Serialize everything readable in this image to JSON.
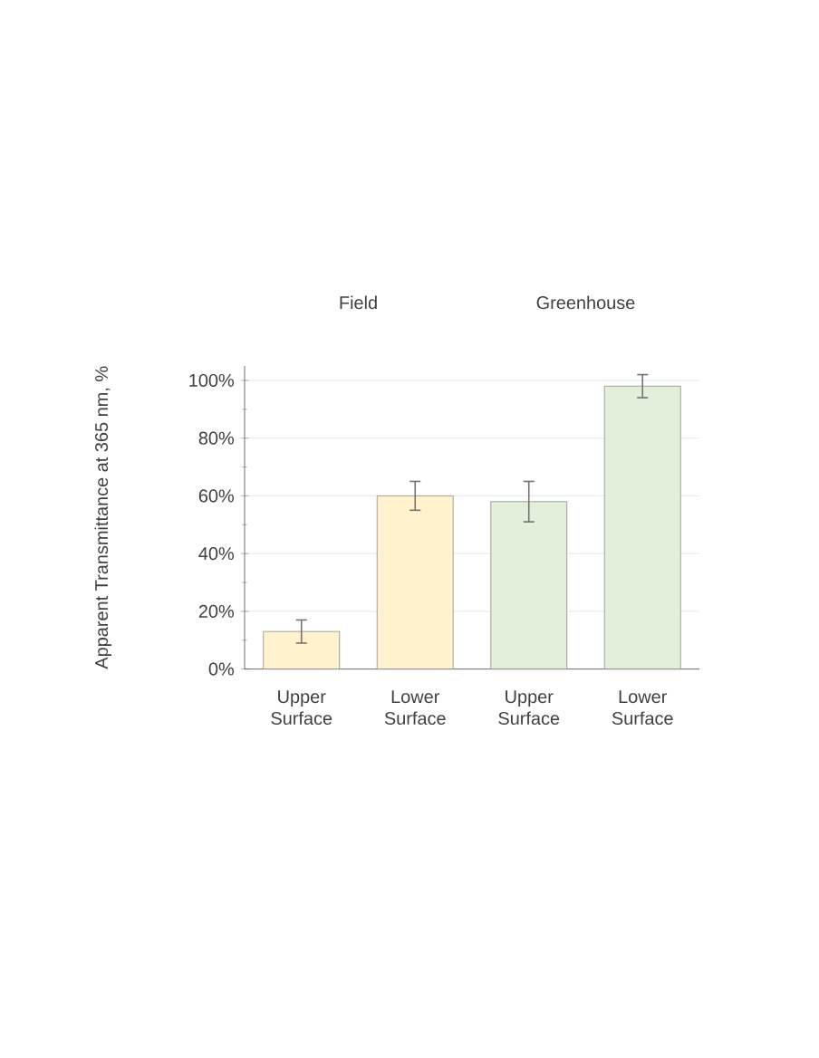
{
  "chart_data": {
    "type": "bar",
    "ylabel": "Apparent Transmittance at 365 nm, %",
    "categories": [
      "Upper Surface",
      "Lower Surface",
      "Upper Surface",
      "Lower Surface"
    ],
    "values": [
      13,
      60,
      58,
      98
    ],
    "errors": [
      4,
      5,
      7,
      4
    ],
    "colors": [
      "#fff2cc",
      "#fff2cc",
      "#e2efda",
      "#e2efda"
    ],
    "ylim": [
      0,
      105
    ],
    "yticks": [
      {
        "value": 0,
        "label": "0%"
      },
      {
        "value": 20,
        "label": "20%"
      },
      {
        "value": 40,
        "label": "40%"
      },
      {
        "value": 60,
        "label": "60%"
      },
      {
        "value": 80,
        "label": "80%"
      },
      {
        "value": 100,
        "label": "100%"
      }
    ],
    "grid": "y",
    "annotations": [
      "Field",
      "Greenhouse"
    ]
  }
}
